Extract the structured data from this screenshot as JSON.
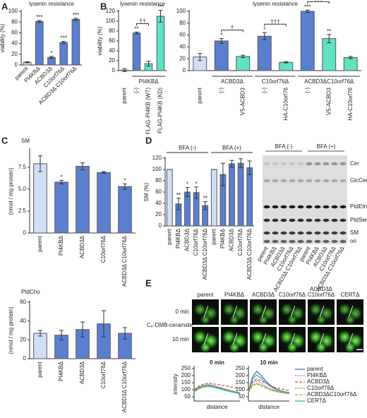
{
  "panel_labels": [
    "A",
    "B",
    "C",
    "D",
    "E"
  ],
  "chart_data": [
    {
      "type": "bar",
      "title": "lysenin resistance",
      "ylabel": "viability (%)",
      "categories": [
        "parent",
        "PI4KBΔ",
        "ACBD3Δ",
        "C10orf76Δ",
        "ACBD3Δ C10orf76Δ"
      ],
      "values": [
        5,
        81,
        14,
        42,
        85
      ],
      "errors": [
        1,
        2,
        2,
        2,
        2
      ],
      "significance": [
        null,
        "***",
        "*",
        "***",
        "***"
      ],
      "colors": [
        "#cfe0f5",
        "#5a7fcf",
        "#5a7fcf",
        "#5a7fcf",
        "#5a7fcf"
      ],
      "ylim": [
        0,
        100
      ],
      "yticks": [
        0,
        20,
        40,
        60,
        80,
        100
      ]
    },
    {
      "type": "bar",
      "title": "lysenin resistance",
      "ylabel": "viability (%)",
      "categories": [
        "parent",
        "(-)",
        "FLAG-PI4KB (WT)",
        "FLAG-PI4KB (KD)"
      ],
      "values": [
        1,
        76,
        14,
        110
      ],
      "errors": [
        3,
        2,
        5,
        12
      ],
      "significance": [
        null,
        "**",
        null,
        "***"
      ],
      "colors": [
        "#ffffff",
        "#5a7fcf",
        "#5fe3c0",
        "#5fe3c0"
      ],
      "groups": [
        {
          "label": "PI4KBΔ",
          "from": 1,
          "to": 3
        }
      ],
      "brackets": [
        {
          "from": 1,
          "to": 2,
          "label": "††"
        },
        {
          "from": 1,
          "to": 3,
          "label": "†††"
        }
      ],
      "ylim": [
        0,
        120
      ],
      "yticks": [
        0,
        20,
        40,
        60,
        80,
        100,
        120
      ]
    },
    {
      "type": "bar",
      "title": "lysenin resistance",
      "categories": [
        "parent",
        "(-)",
        "V5-ACBD3",
        "(-)",
        "HA-C10orf76",
        "(-)",
        "V5-ACBD3",
        "HA-C10orf76"
      ],
      "values": [
        23,
        50,
        24,
        58,
        14,
        100,
        54,
        22
      ],
      "errors": [
        6,
        4,
        2,
        6,
        1,
        2,
        7,
        2
      ],
      "significance": [
        null,
        "*",
        null,
        "*",
        null,
        "***",
        "**",
        null
      ],
      "colors": [
        "#cfe0f5",
        "#5a7fcf",
        "#5fe3c0",
        "#5a7fcf",
        "#5fe3c0",
        "#5a7fcf",
        "#5fe3c0",
        "#5fe3c0"
      ],
      "groups": [
        {
          "label": "ACBD3Δ",
          "from": 1,
          "to": 2
        },
        {
          "label": "C10orf76Δ",
          "from": 3,
          "to": 4
        },
        {
          "label": "ACBD3ΔC10orf76Δ",
          "from": 5,
          "to": 7
        }
      ],
      "brackets": [
        {
          "from": 1,
          "to": 2,
          "label": "†"
        },
        {
          "from": 3,
          "to": 4,
          "label": "†††"
        },
        {
          "from": 5,
          "to": 6,
          "label": "†††"
        },
        {
          "from": 5,
          "to": 7,
          "label": "†††"
        }
      ],
      "ylim": [
        0,
        100
      ],
      "yticks": [
        0,
        20,
        40,
        60,
        80,
        100
      ]
    },
    {
      "type": "bar",
      "title": "SM",
      "title_color": "#27389a",
      "ylabel": "(nmol / mg protein)",
      "categories": [
        "parent",
        "PI4KBΔ",
        "ACBD3Δ",
        "C10orf76Δ",
        "ACBD3Δ C10orf76Δ"
      ],
      "values": [
        7.9,
        5.8,
        7.6,
        6.9,
        5.3
      ],
      "errors": [
        0.9,
        0.2,
        0.4,
        0.1,
        0.3
      ],
      "significance": [
        null,
        "*",
        null,
        null,
        "*"
      ],
      "colors": [
        "#cfe0f5",
        "#5a7fcf",
        "#5a7fcf",
        "#5a7fcf",
        "#5a7fcf"
      ],
      "ylim": [
        0,
        9.5
      ],
      "yticks": [
        0,
        2.5,
        {
          "value": 5,
          "label": "5.0"
        },
        7.5
      ]
    },
    {
      "type": "bar",
      "title": "PtdCho",
      "title_color": "#27389a",
      "ylabel": "(nmol / mg protein)",
      "categories": [
        "parent",
        "PI4KBΔ",
        "ACBD3Δ",
        "C10orf76Δ",
        "ACBD3Δ C10orf76Δ"
      ],
      "values": [
        27,
        25,
        31,
        37,
        27
      ],
      "errors": [
        3,
        5,
        8,
        14,
        6
      ],
      "colors": [
        "#cfe0f5",
        "#5a7fcf",
        "#5a7fcf",
        "#5a7fcf",
        "#5a7fcf"
      ],
      "ylim": [
        0,
        60
      ],
      "yticks": [
        0,
        20,
        40,
        60
      ]
    },
    {
      "type": "bar",
      "ylabel": "SM (%)",
      "categories": [
        "parent",
        "PI4KBΔ",
        "ACBD3Δ",
        "C10orf76Δ",
        "ACBD3Δ C10orf76Δ",
        "parent",
        "PI4KBΔ",
        "ACBD3Δ",
        "C10orf76Δ",
        "ACBD3Δ C10orf76Δ"
      ],
      "values": [
        100,
        39,
        60,
        59,
        36,
        100,
        91,
        110,
        111,
        103
      ],
      "errors": [
        0,
        10,
        8,
        10,
        7,
        0,
        20,
        6,
        8,
        12
      ],
      "significance": [
        null,
        "**",
        "*",
        "*",
        "**",
        null,
        null,
        null,
        null,
        null
      ],
      "colors": [
        "#cfe0f5",
        "#5a7fcf",
        "#5a7fcf",
        "#5a7fcf",
        "#5a7fcf",
        "#cfe0f5",
        "#5a7fcf",
        "#5a7fcf",
        "#5a7fcf",
        "#5a7fcf"
      ],
      "groups": [
        {
          "label": "BFA (-)",
          "from": 0,
          "to": 4
        },
        {
          "label": "BFA (+)",
          "from": 5,
          "to": 9
        }
      ],
      "ylim": [
        0,
        120
      ],
      "yticks": [
        0,
        20,
        40,
        60,
        80,
        100,
        120
      ]
    },
    {
      "type": "line",
      "title": "0 min",
      "ylabel": "intensity",
      "xlabel": "distance",
      "x": [
        0,
        1,
        2,
        3,
        4,
        5,
        6,
        7,
        8,
        9,
        10
      ],
      "xlim": [
        0,
        10
      ],
      "ylim": [
        20,
        260
      ],
      "yticks": [
        50,
        100,
        150,
        200,
        250
      ],
      "series": [
        {
          "name": "parent",
          "color": "#4a6fc0",
          "dash": "solid",
          "values": [
            95,
            118,
            130,
            135,
            130,
            122,
            112,
            102,
            93,
            85,
            78
          ]
        },
        {
          "name": "PI4KBΔ",
          "color": "#9b59b6",
          "dash": "dotted",
          "values": [
            90,
            112,
            125,
            128,
            125,
            118,
            108,
            98,
            90,
            82,
            75
          ]
        },
        {
          "name": "ACBD3Δ",
          "color": "#e0503c",
          "dash": "dashed",
          "values": [
            100,
            125,
            140,
            145,
            142,
            138,
            132,
            126,
            120,
            115,
            110
          ]
        },
        {
          "name": "C10orf76Δ",
          "color": "#2e9e3e",
          "dash": "dotted",
          "values": [
            85,
            105,
            118,
            122,
            118,
            110,
            100,
            92,
            85,
            78,
            72
          ]
        },
        {
          "name": "ACBD3ΔC10orf76Δ",
          "color": "#c8a020",
          "dash": "dashed",
          "values": [
            92,
            115,
            128,
            132,
            128,
            120,
            110,
            100,
            92,
            84,
            78
          ]
        },
        {
          "name": "CERTΔ",
          "color": "#3ab0b0",
          "dash": "solid",
          "values": [
            88,
            110,
            122,
            126,
            122,
            115,
            105,
            96,
            88,
            80,
            74
          ]
        }
      ]
    },
    {
      "type": "line",
      "title": "10 min",
      "xlabel": "distance",
      "x": [
        0,
        1,
        2,
        3,
        4,
        5,
        6,
        7,
        8,
        9,
        10
      ],
      "xlim": [
        0,
        10
      ],
      "ylim": [
        20,
        260
      ],
      "yticks": [
        50,
        100,
        150,
        200,
        250
      ],
      "legend": "right",
      "series": [
        {
          "name": "parent",
          "color": "#4a6fc0",
          "dash": "solid",
          "values": [
            90,
            190,
            230,
            205,
            170,
            140,
            118,
            102,
            92,
            85,
            80
          ]
        },
        {
          "name": "PI4KBΔ",
          "color": "#9b59b6",
          "dash": "dotted",
          "values": [
            85,
            150,
            165,
            150,
            130,
            112,
            100,
            90,
            83,
            78,
            74
          ]
        },
        {
          "name": "ACBD3Δ",
          "color": "#e0503c",
          "dash": "dashed",
          "values": [
            90,
            160,
            175,
            165,
            150,
            135,
            122,
            112,
            105,
            100,
            96
          ]
        },
        {
          "name": "C10orf76Δ",
          "color": "#2e9e3e",
          "dash": "dotted",
          "values": [
            80,
            135,
            145,
            135,
            120,
            106,
            96,
            88,
            82,
            78,
            75
          ]
        },
        {
          "name": "ACBD3ΔC10orf76Δ",
          "color": "#c8a020",
          "dash": "dashed",
          "values": [
            80,
            130,
            140,
            130,
            115,
            102,
            92,
            85,
            80,
            76,
            72
          ]
        },
        {
          "name": "CERTΔ",
          "color": "#3ab0b0",
          "dash": "solid",
          "values": [
            88,
            175,
            205,
            185,
            155,
            130,
            112,
            98,
            90,
            84,
            80
          ]
        }
      ]
    }
  ],
  "tlc": {
    "conditions": [
      "BFA (-)",
      "BFA (+)"
    ],
    "bands": [
      "Cer",
      "GlcCer",
      "PtdEtn",
      "PtdSer",
      "SM",
      "ori"
    ],
    "lanes": [
      "parent",
      "PI4KBΔ",
      "ACBD3Δ",
      "C10orf76Δ",
      "ACBD3Δ C10orf76Δ",
      "parent",
      "PI4KBΔ",
      "ACBD3Δ",
      "C10orf76Δ",
      "ACBD3Δ C10orf76Δ"
    ]
  },
  "microscopy": {
    "probe": "C₆-DMB-ceramide",
    "rows": [
      "0 min",
      "10 min"
    ],
    "columns": [
      {
        "lines": [
          "parent"
        ],
        "color": "#4a6fc0"
      },
      {
        "lines": [
          "PI4KBΔ"
        ],
        "color": "#9b59b6"
      },
      {
        "lines": [
          "ACBD3Δ"
        ],
        "color": "#e0503c"
      },
      {
        "lines": [
          "C10orf76Δ"
        ],
        "color": "#2e9e3e"
      },
      {
        "lines": [
          "ACBD3Δ",
          "C10orf76Δ"
        ],
        "color": "#b8961a"
      },
      {
        "lines": [
          "CERTΔ"
        ],
        "color": "#3ab0b0"
      }
    ]
  }
}
